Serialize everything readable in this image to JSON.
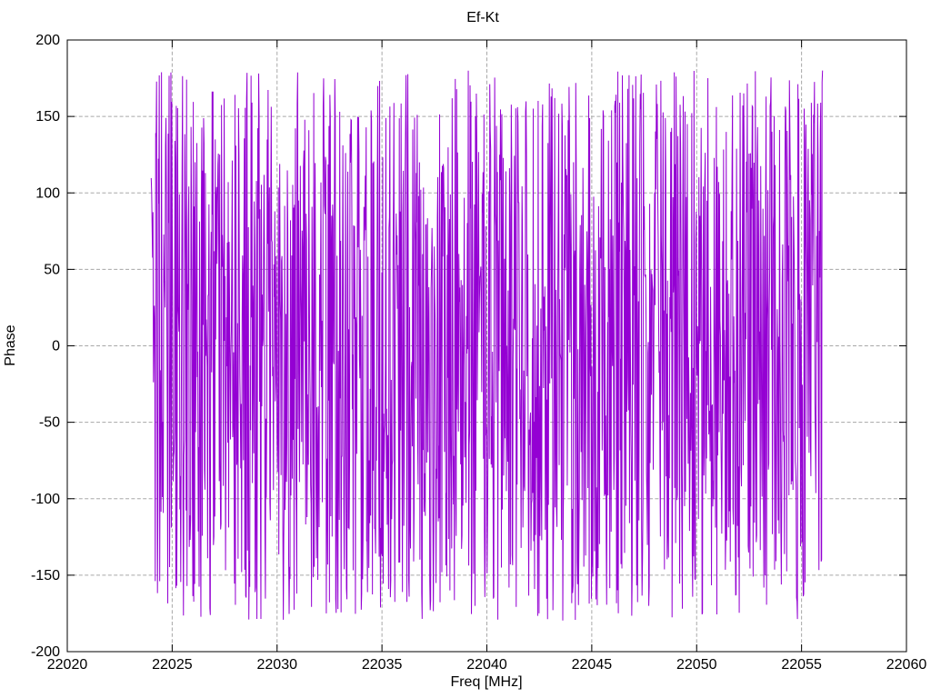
{
  "window": {
    "background": "#ffffff"
  },
  "chart_data": {
    "type": "line",
    "title": "Ef-Kt",
    "xlabel": "Freq [MHz]",
    "ylabel": "Phase",
    "xlim": [
      22020,
      22060
    ],
    "ylim": [
      -200,
      200
    ],
    "xticks": [
      22020,
      22025,
      22030,
      22035,
      22040,
      22045,
      22050,
      22055,
      22060
    ],
    "yticks": [
      -200,
      -150,
      -100,
      -50,
      0,
      50,
      100,
      150,
      200
    ],
    "grid": true,
    "grid_style": "dashed",
    "grid_color": "#a8a8a8",
    "axis_color": "#000000",
    "plot_bg": "#ffffff",
    "legend": "none",
    "series": [
      {
        "name": "phase",
        "color": "#9400D3",
        "x_start": 22024,
        "x_end": 22056,
        "n_points": 1500,
        "y_wrap_range": [
          -180,
          180
        ],
        "start_phase": 80,
        "end_phase": 180,
        "generator": {
          "type": "seeded-random-phase-walk",
          "seed": 1337,
          "step_scale": 100
        },
        "description": "Densely wrapped phase noise: successive samples jump pseudo-randomly and wrap between -180 and +180 degrees across 22024-22056 MHz"
      }
    ]
  }
}
